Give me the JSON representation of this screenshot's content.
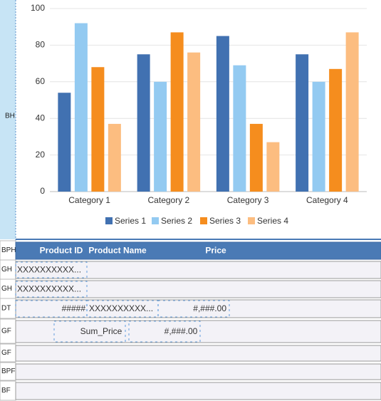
{
  "chart_band": "BH",
  "chart_data": {
    "type": "bar",
    "categories": [
      "Category 1",
      "Category 2",
      "Category 3",
      "Category 4"
    ],
    "series": [
      {
        "name": "Series 1",
        "color": "#4171b1",
        "values": [
          54,
          75,
          85,
          75
        ]
      },
      {
        "name": "Series 2",
        "color": "#93caf1",
        "values": [
          92,
          60,
          69,
          60
        ]
      },
      {
        "name": "Series 3",
        "color": "#f58d1e",
        "values": [
          68,
          87,
          37,
          67
        ]
      },
      {
        "name": "Series 4",
        "color": "#fcbd80",
        "values": [
          37,
          76,
          27,
          87
        ]
      }
    ],
    "ylim": [
      0,
      100
    ],
    "yticks": [
      0,
      20,
      40,
      60,
      80,
      100
    ],
    "grid": true,
    "legend": "bottom"
  },
  "bands": [
    {
      "label": "BPH",
      "cells": [
        "Product ID",
        "Product Name",
        "Price"
      ]
    },
    {
      "label": "GH",
      "cells": [
        "XXXXXXXXXX..."
      ]
    },
    {
      "label": "GH",
      "cells": [
        "XXXXXXXXXX..."
      ]
    },
    {
      "label": "DT",
      "cells": [
        "#####",
        "XXXXXXXXXX...",
        "#,###.00"
      ]
    },
    {
      "label": "GF",
      "cells": [
        "Sum_Price",
        "#,###.00"
      ]
    },
    {
      "label": "GF",
      "cells": []
    },
    {
      "label": "BPF",
      "cells": []
    },
    {
      "label": "BF",
      "cells": []
    }
  ]
}
